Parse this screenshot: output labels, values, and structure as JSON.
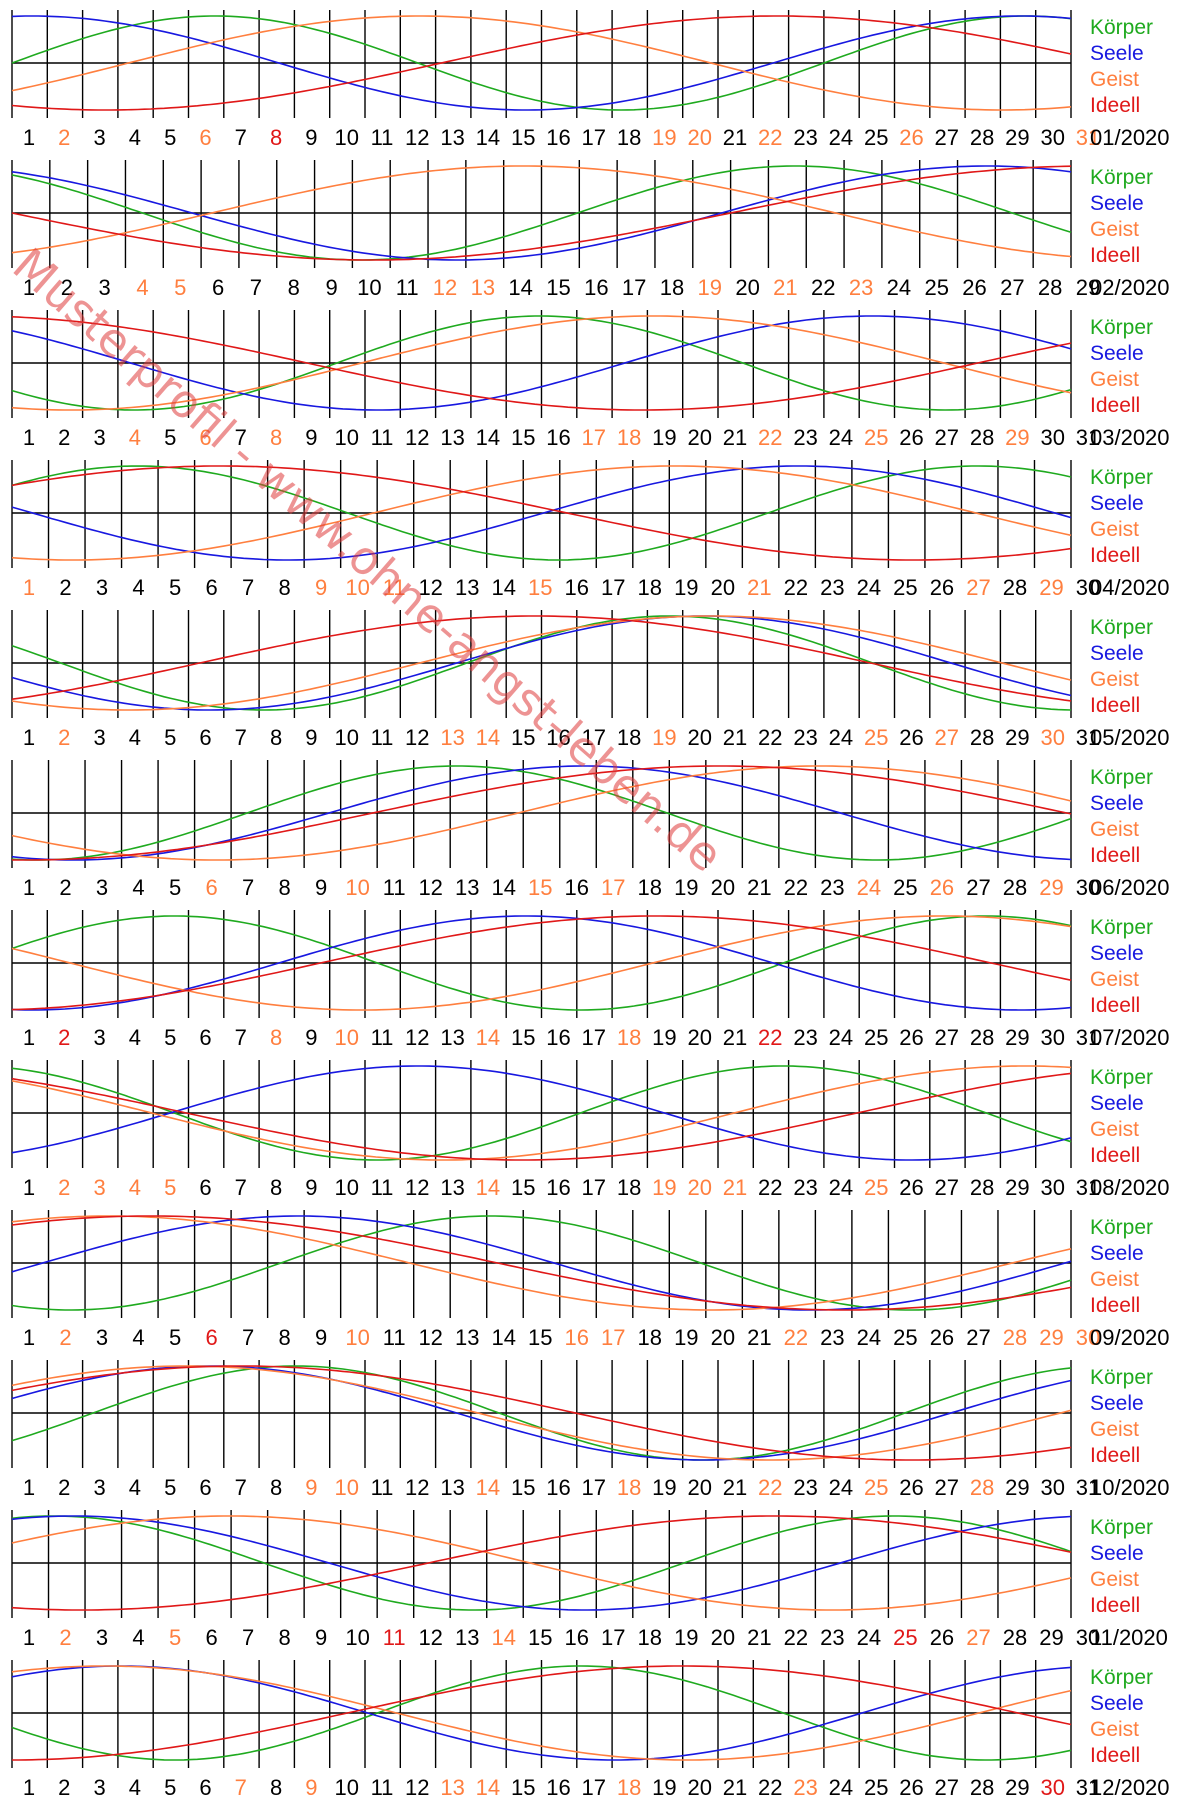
{
  "colors": {
    "koerper": "#1faa1f",
    "seele": "#1818e0",
    "geist": "#ff7f3f",
    "ideell": "#e01818",
    "grid": "#000000",
    "highlight_orange": "#ff7f3f",
    "highlight_red": "#e01818"
  },
  "watermark": {
    "text": "Musterprofil - www.ohne-angst-leben.de"
  },
  "chart_data": {
    "type": "line",
    "title": "",
    "xlabel": "",
    "ylabel": "",
    "ylim": [
      -1,
      1
    ],
    "grid": true,
    "legend_position": "right",
    "legend": [
      {
        "key": "koerper",
        "label": "Körper",
        "period_days": 23
      },
      {
        "key": "seele",
        "label": "Seele",
        "period_days": 28
      },
      {
        "key": "geist",
        "label": "Geist",
        "period_days": 33
      },
      {
        "key": "ideell",
        "label": "Ideell",
        "period_days": 38
      }
    ],
    "panels": [
      {
        "label": "01/2020",
        "days": 31,
        "orange_days": [
          2,
          6,
          19,
          20,
          22,
          26,
          31
        ],
        "red_days": [
          8
        ],
        "phase_start": {
          "koerper": 0.0,
          "seele": 0.23,
          "geist": 0.9,
          "ideell": 0.68
        }
      },
      {
        "label": "02/2020",
        "days": 29,
        "orange_days": [
          4,
          5,
          12,
          13,
          19,
          21,
          23
        ],
        "red_days": [],
        "phase_start": {
          "koerper": 0.35,
          "seele": 0.33,
          "geist": 0.84,
          "ideell": 0.5
        }
      },
      {
        "label": "03/2020",
        "days": 31,
        "orange_days": [
          4,
          6,
          8,
          17,
          18,
          22,
          25,
          29
        ],
        "red_days": [],
        "phase_start": {
          "koerper": 0.6,
          "seele": 0.38,
          "geist": 0.7,
          "ideell": 0.28
        }
      },
      {
        "label": "04/2020",
        "days": 30,
        "orange_days": [
          1,
          9,
          10,
          11,
          15,
          21,
          27,
          29
        ],
        "red_days": [],
        "phase_start": {
          "koerper": 0.1,
          "seele": 0.48,
          "geist": 0.7,
          "ideell": 0.1
        }
      },
      {
        "label": "05/2020",
        "days": 31,
        "orange_days": [
          2,
          13,
          14,
          19,
          25,
          27,
          30
        ],
        "red_days": [],
        "phase_start": {
          "koerper": 0.44,
          "seele": 0.55,
          "geist": 0.65,
          "ideell": 0.86
        }
      },
      {
        "label": "06/2020",
        "days": 30,
        "orange_days": [
          6,
          10,
          15,
          17,
          24,
          26,
          29
        ],
        "red_days": [],
        "phase_start": {
          "koerper": 0.72,
          "seele": 0.69,
          "geist": 0.58,
          "ideell": 0.74
        }
      },
      {
        "label": "07/2020",
        "days": 31,
        "orange_days": [
          8,
          10,
          14,
          18
        ],
        "red_days": [
          2,
          22
        ],
        "phase_start": {
          "koerper": 0.05,
          "seele": 0.73,
          "geist": 0.45,
          "ideell": 0.77
        }
      },
      {
        "label": "08/2020",
        "days": 31,
        "orange_days": [
          2,
          3,
          4,
          5,
          14,
          19,
          20,
          21,
          25
        ],
        "red_days": [],
        "phase_start": {
          "koerper": 0.3,
          "seele": 0.84,
          "geist": 0.38,
          "ideell": 0.37
        }
      },
      {
        "label": "09/2020",
        "days": 30,
        "orange_days": [
          2,
          10,
          16,
          17,
          22,
          28,
          29,
          30
        ],
        "red_days": [
          6
        ],
        "phase_start": {
          "koerper": 0.68,
          "seele": 0.97,
          "geist": 0.17,
          "ideell": 0.15
        }
      },
      {
        "label": "10/2020",
        "days": 31,
        "orange_days": [
          9,
          10,
          14,
          18,
          22,
          25,
          28
        ],
        "red_days": [],
        "phase_start": {
          "koerper": 0.9,
          "seele": 0.05,
          "geist": 0.1,
          "ideell": 0.08
        }
      },
      {
        "label": "11/2020",
        "days": 30,
        "orange_days": [
          2,
          5,
          14,
          27
        ],
        "red_days": [
          11,
          25
        ],
        "phase_start": {
          "koerper": 0.2,
          "seele": 0.19,
          "geist": 0.07,
          "ideell": 0.7
        }
      },
      {
        "label": "12/2020",
        "days": 31,
        "orange_days": [
          7,
          9,
          13,
          14,
          18,
          23
        ],
        "red_days": [
          30
        ],
        "phase_start": {
          "koerper": 0.55,
          "seele": 0.14,
          "geist": 0.17,
          "ideell": 0.75
        }
      }
    ]
  }
}
